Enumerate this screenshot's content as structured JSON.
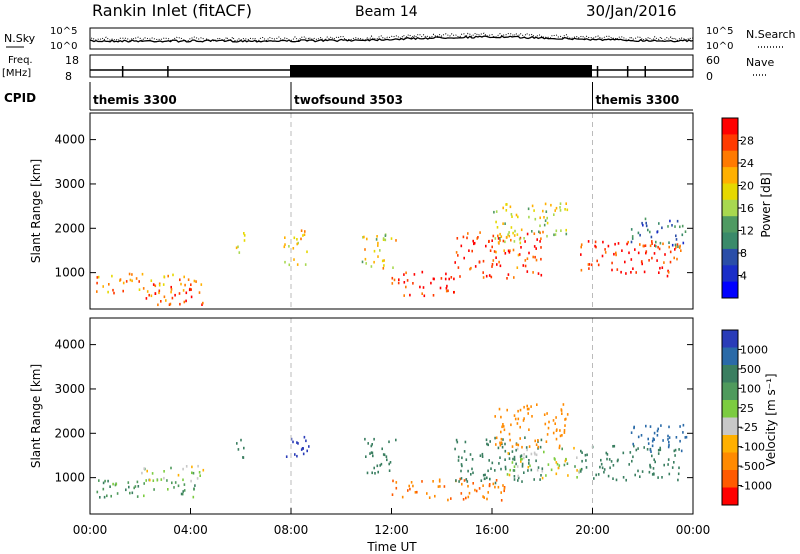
{
  "header": {
    "station": "Rankin Inlet (fitACF)",
    "beam": "Beam 14",
    "date": "30/Jan/2016"
  },
  "panels": {
    "nsky_label": "N.Sky",
    "nsky_ticks": [
      "10^5",
      "10^0"
    ],
    "nsearch_label": "N.Search",
    "nsearch_ticks": [
      "10^5",
      "10^0"
    ],
    "freq_label_1": "Freq.",
    "freq_label_2": "[MHz]",
    "freq_ticks": [
      "18",
      "8"
    ],
    "nave_label": "Nave",
    "nave_ticks": [
      "60",
      "0"
    ],
    "cpid_label": "CPID",
    "cpid_segments": [
      {
        "name": "themis 3300",
        "start_hour": 0,
        "end_hour": 8
      },
      {
        "name": "twofsound 3503",
        "start_hour": 8,
        "end_hour": 20
      },
      {
        "name": "themis 3300",
        "start_hour": 20,
        "end_hour": 24
      }
    ]
  },
  "chart_data": [
    {
      "type": "heatmap",
      "panel": "power",
      "ylabel": "Slant Range [km]",
      "ylim": [
        180,
        4600
      ],
      "yticks": [
        "1000",
        "2000",
        "3000",
        "4000"
      ],
      "colorbar_label": "Power [dB]",
      "colorbar_ticks": [
        "28",
        "24",
        "20",
        "16",
        "12",
        "8",
        "4"
      ],
      "colorbar_colors": [
        "#ff0000",
        "#ff3a00",
        "#ff7a00",
        "#ffb000",
        "#e6d800",
        "#a8d850",
        "#4f9a62",
        "#3a8a6a",
        "#2a4ea8",
        "#1a2ec8",
        "#0000ff"
      ],
      "regions": [
        {
          "x": [
            0.2,
            4.2
          ],
          "y": [
            550,
            1000
          ],
          "value": 22
        },
        {
          "x": [
            2.2,
            4.6
          ],
          "y": [
            300,
            800
          ],
          "value": 26
        },
        {
          "x": [
            5.8,
            6.2
          ],
          "y": [
            1400,
            1950
          ],
          "value": 16
        },
        {
          "x": [
            7.7,
            8.7
          ],
          "y": [
            1200,
            2000
          ],
          "value": 20
        },
        {
          "x": [
            10.8,
            12.2
          ],
          "y": [
            1100,
            1900
          ],
          "value": 18
        },
        {
          "x": [
            12.0,
            14.6
          ],
          "y": [
            500,
            1050
          ],
          "value": 27
        },
        {
          "x": [
            14.5,
            18.0
          ],
          "y": [
            900,
            1950
          ],
          "value": 26
        },
        {
          "x": [
            16.0,
            19.0
          ],
          "y": [
            1700,
            2600
          ],
          "value": 17
        },
        {
          "x": [
            19.5,
            23.5
          ],
          "y": [
            950,
            1750
          ],
          "value": 27
        },
        {
          "x": [
            21.5,
            23.8
          ],
          "y": [
            1600,
            2250
          ],
          "value": 8
        }
      ]
    },
    {
      "type": "heatmap",
      "panel": "velocity",
      "xlabel": "Time UT",
      "xlim": [
        0,
        24
      ],
      "xticks": [
        "00:00",
        "04:00",
        "08:00",
        "12:00",
        "16:00",
        "20:00",
        "00:00"
      ],
      "ylabel": "Slant Range [km]",
      "ylim": [
        180,
        4600
      ],
      "yticks": [
        "1000",
        "2000",
        "3000",
        "4000"
      ],
      "colorbar_label": "Velocity [m s⁻¹]",
      "colorbar_ticks": [
        "1000",
        "500",
        "100",
        "25",
        "-25",
        "-100",
        "-500",
        "-1000"
      ],
      "colorbar_colors": [
        "#2a3cb8",
        "#2a6aa8",
        "#3a7e60",
        "#4f9a5c",
        "#7ccc40",
        "#c8c8c8",
        "#ffb000",
        "#ff8a00",
        "#ff5a00",
        "#ff0000"
      ],
      "regions": [
        {
          "x": [
            0.2,
            4.2
          ],
          "y": [
            550,
            1000
          ],
          "value": 60
        },
        {
          "x": [
            1.8,
            4.5
          ],
          "y": [
            900,
            1300
          ],
          "value": 0
        },
        {
          "x": [
            5.8,
            6.2
          ],
          "y": [
            1400,
            1950
          ],
          "value": 200
        },
        {
          "x": [
            7.7,
            8.7
          ],
          "y": [
            1500,
            2100
          ],
          "value": 800
        },
        {
          "x": [
            10.8,
            12.2
          ],
          "y": [
            1100,
            1900
          ],
          "value": 200
        },
        {
          "x": [
            12.0,
            16.5
          ],
          "y": [
            500,
            1000
          ],
          "value": -300
        },
        {
          "x": [
            14.5,
            18.0
          ],
          "y": [
            900,
            1950
          ],
          "value": 200
        },
        {
          "x": [
            16.5,
            19.5
          ],
          "y": [
            1000,
            1700
          ],
          "value": 0
        },
        {
          "x": [
            16.0,
            19.0
          ],
          "y": [
            1700,
            2700
          ],
          "value": -150
        },
        {
          "x": [
            19.5,
            23.5
          ],
          "y": [
            950,
            1750
          ],
          "value": 200
        },
        {
          "x": [
            21.5,
            23.8
          ],
          "y": [
            1600,
            2250
          ],
          "value": 500
        }
      ]
    }
  ]
}
